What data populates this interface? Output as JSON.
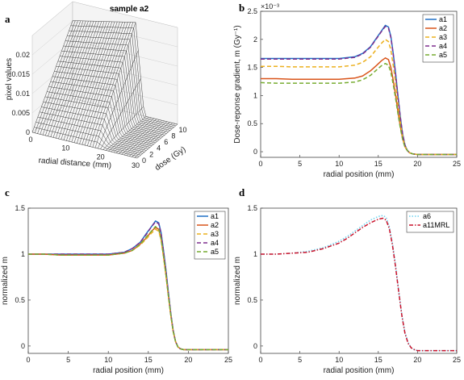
{
  "panel_labels": [
    "a",
    "b",
    "c",
    "d"
  ],
  "colors": {
    "a1": "#1f6fc6",
    "a2": "#d9541a",
    "a3": "#ecb01f",
    "a4": "#7e2f8e",
    "a5": "#77ac30",
    "a6": "#6bd2ef",
    "a11MRL": "#c9112a"
  },
  "chart_data": [
    {
      "id": "a",
      "type": "surface",
      "title": "sample a2",
      "xlabel": "radial distance (mm)",
      "ylabel": "dose (Gy)",
      "zlabel": "pixel values",
      "x_ticks": [
        "0",
        "10",
        "20",
        "30"
      ],
      "y_ticks": [
        "0",
        "2",
        "4",
        "6",
        "8",
        "10"
      ],
      "z_ticks": [
        "0",
        "0.005",
        "0.01",
        "0.015",
        "0.02"
      ],
      "xlim": [
        0,
        30
      ],
      "ylim": [
        0,
        11
      ],
      "zlim": [
        0,
        0.025
      ]
    },
    {
      "id": "b",
      "type": "line",
      "title": "",
      "xlabel": "radial position (mm)",
      "ylabel": "Dose-reponse gradient, m (Gy⁻¹)",
      "exponent_label": "×10⁻³",
      "xlim": [
        0,
        25
      ],
      "ylim": [
        -0.0001,
        0.0025
      ],
      "x_ticks": [
        "0",
        "5",
        "10",
        "15",
        "20",
        "25"
      ],
      "y_ticks": [
        "0",
        "0.5",
        "1",
        "1.5",
        "2",
        "2.5"
      ],
      "legend_position": "top-right",
      "x": [
        0,
        2,
        4,
        6,
        8,
        10,
        12,
        13,
        14,
        14.8,
        15.4,
        15.9,
        16.3,
        16.6,
        16.9,
        17.2,
        17.5,
        17.8,
        18.1,
        18.4,
        18.7,
        19,
        19.4,
        20,
        25
      ],
      "series": [
        {
          "name": "a1",
          "style": "solid",
          "values": [
            0.00166,
            0.00166,
            0.00166,
            0.00166,
            0.00166,
            0.00166,
            0.00169,
            0.00175,
            0.00187,
            0.00203,
            0.00215,
            0.00225,
            0.00222,
            0.00205,
            0.00175,
            0.0014,
            0.001,
            0.00063,
            0.00032,
            0.00012,
            2e-05,
            -2e-05,
            -4e-05,
            -5e-05,
            -5e-05
          ]
        },
        {
          "name": "a2",
          "style": "solid",
          "values": [
            0.0013,
            0.0013,
            0.00129,
            0.00129,
            0.00129,
            0.00129,
            0.00131,
            0.00135,
            0.00144,
            0.00154,
            0.00162,
            0.00167,
            0.00164,
            0.0015,
            0.00127,
            0.00101,
            0.00072,
            0.00046,
            0.00024,
            9e-05,
            2e-05,
            -2e-05,
            -4e-05,
            -5e-05,
            -5e-05
          ]
        },
        {
          "name": "a3",
          "style": "dashed",
          "values": [
            0.00152,
            0.00152,
            0.00151,
            0.00151,
            0.00151,
            0.00151,
            0.00154,
            0.00159,
            0.00169,
            0.00183,
            0.00193,
            0.002,
            0.00196,
            0.00181,
            0.00154,
            0.00123,
            0.00088,
            0.00055,
            0.00028,
            0.0001,
            2e-05,
            -2e-05,
            -4e-05,
            -5e-05,
            -5e-05
          ]
        },
        {
          "name": "a4",
          "style": "dashed",
          "values": [
            0.00165,
            0.00165,
            0.00165,
            0.00165,
            0.00165,
            0.00165,
            0.00168,
            0.00174,
            0.00186,
            0.00202,
            0.00214,
            0.00223,
            0.0022,
            0.00203,
            0.00173,
            0.00138,
            0.00099,
            0.00062,
            0.00031,
            0.00012,
            2e-05,
            -2e-05,
            -4e-05,
            -5e-05,
            -5e-05
          ]
        },
        {
          "name": "a5",
          "style": "dashed",
          "values": [
            0.00123,
            0.00122,
            0.00122,
            0.00122,
            0.00122,
            0.00122,
            0.00124,
            0.00128,
            0.00136,
            0.00146,
            0.00153,
            0.00157,
            0.00154,
            0.00141,
            0.0012,
            0.00095,
            0.00068,
            0.00043,
            0.00022,
            8e-05,
            2e-05,
            -2e-05,
            -4e-05,
            -5e-05,
            -5e-05
          ]
        }
      ]
    },
    {
      "id": "c",
      "type": "line",
      "title": "",
      "xlabel": "radial position (mm)",
      "ylabel": "normalized m",
      "xlim": [
        0,
        25
      ],
      "ylim": [
        -0.08,
        1.5
      ],
      "x_ticks": [
        "0",
        "5",
        "10",
        "15",
        "20",
        "25"
      ],
      "y_ticks": [
        "0",
        "0.5",
        "1",
        "1.5"
      ],
      "legend_position": "top-right",
      "x": [
        0,
        2,
        4,
        6,
        8,
        10,
        12,
        13,
        14,
        14.8,
        15.4,
        15.9,
        16.3,
        16.6,
        16.9,
        17.2,
        17.5,
        17.8,
        18.1,
        18.4,
        18.7,
        19,
        19.4,
        20,
        25
      ],
      "series": [
        {
          "name": "a1",
          "style": "solid",
          "values": [
            1.0,
            1.0,
            1.0,
            1.0,
            1.0,
            1.0,
            1.02,
            1.06,
            1.13,
            1.23,
            1.3,
            1.36,
            1.34,
            1.23,
            1.04,
            0.83,
            0.59,
            0.36,
            0.17,
            0.05,
            -0.01,
            -0.03,
            -0.04,
            -0.04,
            -0.04
          ]
        },
        {
          "name": "a2",
          "style": "solid",
          "values": [
            1.0,
            1.0,
            0.99,
            0.99,
            0.99,
            0.99,
            1.01,
            1.04,
            1.11,
            1.18,
            1.25,
            1.29,
            1.27,
            1.16,
            0.98,
            0.78,
            0.55,
            0.34,
            0.16,
            0.05,
            -0.01,
            -0.03,
            -0.04,
            -0.04,
            -0.04
          ]
        },
        {
          "name": "a3",
          "style": "dashed",
          "values": [
            1.0,
            1.0,
            0.99,
            0.99,
            0.99,
            0.99,
            1.01,
            1.04,
            1.1,
            1.17,
            1.23,
            1.27,
            1.25,
            1.15,
            0.97,
            0.77,
            0.55,
            0.33,
            0.16,
            0.05,
            -0.01,
            -0.03,
            -0.04,
            -0.04,
            -0.04
          ]
        },
        {
          "name": "a4",
          "style": "dashed",
          "values": [
            1.0,
            1.0,
            1.0,
            1.0,
            1.0,
            1.0,
            1.02,
            1.06,
            1.13,
            1.22,
            1.3,
            1.35,
            1.33,
            1.22,
            1.03,
            0.82,
            0.58,
            0.35,
            0.17,
            0.05,
            -0.01,
            -0.03,
            -0.04,
            -0.04,
            -0.04
          ]
        },
        {
          "name": "a5",
          "style": "dashed",
          "values": [
            1.0,
            1.0,
            0.99,
            0.99,
            0.99,
            0.99,
            1.01,
            1.04,
            1.11,
            1.19,
            1.25,
            1.3,
            1.27,
            1.16,
            0.98,
            0.78,
            0.55,
            0.34,
            0.16,
            0.05,
            -0.01,
            -0.03,
            -0.04,
            -0.04,
            -0.04
          ]
        }
      ]
    },
    {
      "id": "d",
      "type": "line",
      "title": "",
      "xlabel": "radial position (mm)",
      "ylabel": "normalized m",
      "xlim": [
        0,
        25
      ],
      "ylim": [
        -0.08,
        1.5
      ],
      "x_ticks": [
        "0",
        "5",
        "10",
        "15",
        "20",
        "25"
      ],
      "y_ticks": [
        "0",
        "0.5",
        "1",
        "1.5"
      ],
      "legend_position": "top-right",
      "x": [
        0,
        2,
        4,
        6,
        8,
        10,
        11,
        12,
        13,
        14,
        15,
        15.6,
        16,
        16.4,
        16.8,
        17.2,
        17.6,
        18,
        18.4,
        18.8,
        19.2,
        19.6,
        20,
        21,
        25
      ],
      "series": [
        {
          "name": "a6",
          "style": "dotted",
          "values": [
            1.0,
            1.0,
            1.01,
            1.03,
            1.07,
            1.14,
            1.19,
            1.25,
            1.31,
            1.37,
            1.41,
            1.42,
            1.4,
            1.3,
            1.12,
            0.88,
            0.6,
            0.34,
            0.15,
            0.04,
            -0.02,
            -0.04,
            -0.05,
            -0.05,
            -0.05
          ]
        },
        {
          "name": "a11MRL",
          "style": "dashdot",
          "values": [
            1.0,
            1.0,
            1.01,
            1.02,
            1.06,
            1.12,
            1.17,
            1.23,
            1.29,
            1.34,
            1.38,
            1.39,
            1.37,
            1.28,
            1.1,
            0.86,
            0.59,
            0.33,
            0.14,
            0.03,
            -0.02,
            -0.04,
            -0.05,
            -0.05,
            -0.05
          ]
        }
      ]
    }
  ]
}
